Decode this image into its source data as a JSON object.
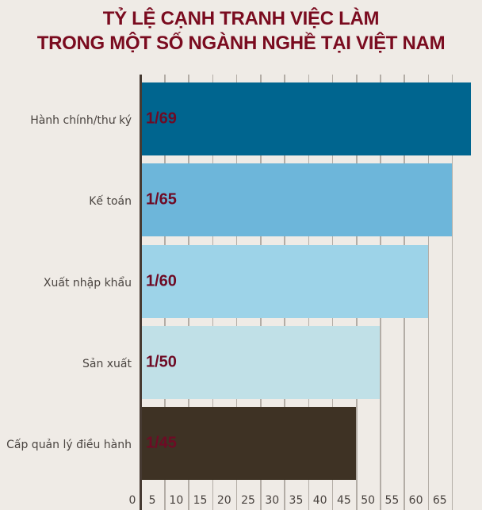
{
  "title": {
    "line1": "TỶ LỆ CẠNH TRANH VIỆC LÀM",
    "line2": "TRONG MỘT SỐ NGÀNH NGHỀ TẠI VIỆT NAM"
  },
  "colors": {
    "background": "#efebe6",
    "title": "#7a0b1f",
    "value_label": "#6e0b25",
    "grid": "#b3ada6",
    "axis": "#463a32"
  },
  "chart_data": {
    "type": "bar",
    "orientation": "horizontal",
    "title": "TỶ LỆ CẠNH TRANH VIỆC LÀM TRONG MỘT SỐ NGÀNH NGHỀ TẠI VIỆT NAM",
    "xlabel": "",
    "ylabel": "",
    "categories": [
      "Hành chính/thư ký",
      "Kế toán",
      "Xuất nhập khẩu",
      "Sản xuất",
      "Cấp quản lý điều hành"
    ],
    "values": [
      69,
      65,
      60,
      50,
      45
    ],
    "data_labels": [
      "1/69",
      "1/65",
      "1/60",
      "1/50",
      "1/45"
    ],
    "bar_colors": [
      "#00658f",
      "#6db6da",
      "#9dd3e8",
      "#c0e0e7",
      "#3e3224"
    ],
    "xlim": [
      0,
      69
    ],
    "xticks": [
      0,
      5,
      10,
      15,
      20,
      25,
      30,
      35,
      40,
      45,
      50,
      55,
      60,
      65
    ],
    "grid": true,
    "legend": null
  },
  "bars": [
    {
      "label": "Hành chính/thư ký",
      "value_text": "1/69"
    },
    {
      "label": "Kế toán",
      "value_text": "1/65"
    },
    {
      "label": "Xuất nhập khẩu",
      "value_text": "1/60"
    },
    {
      "label": "Sản xuất",
      "value_text": "1/50"
    },
    {
      "label": "Cấp quản lý điều hành",
      "value_text": "1/45"
    }
  ],
  "axis": {
    "ticks": [
      "0",
      "5",
      "10",
      "15",
      "20",
      "25",
      "30",
      "35",
      "40",
      "45",
      "50",
      "55",
      "60",
      "65"
    ]
  }
}
